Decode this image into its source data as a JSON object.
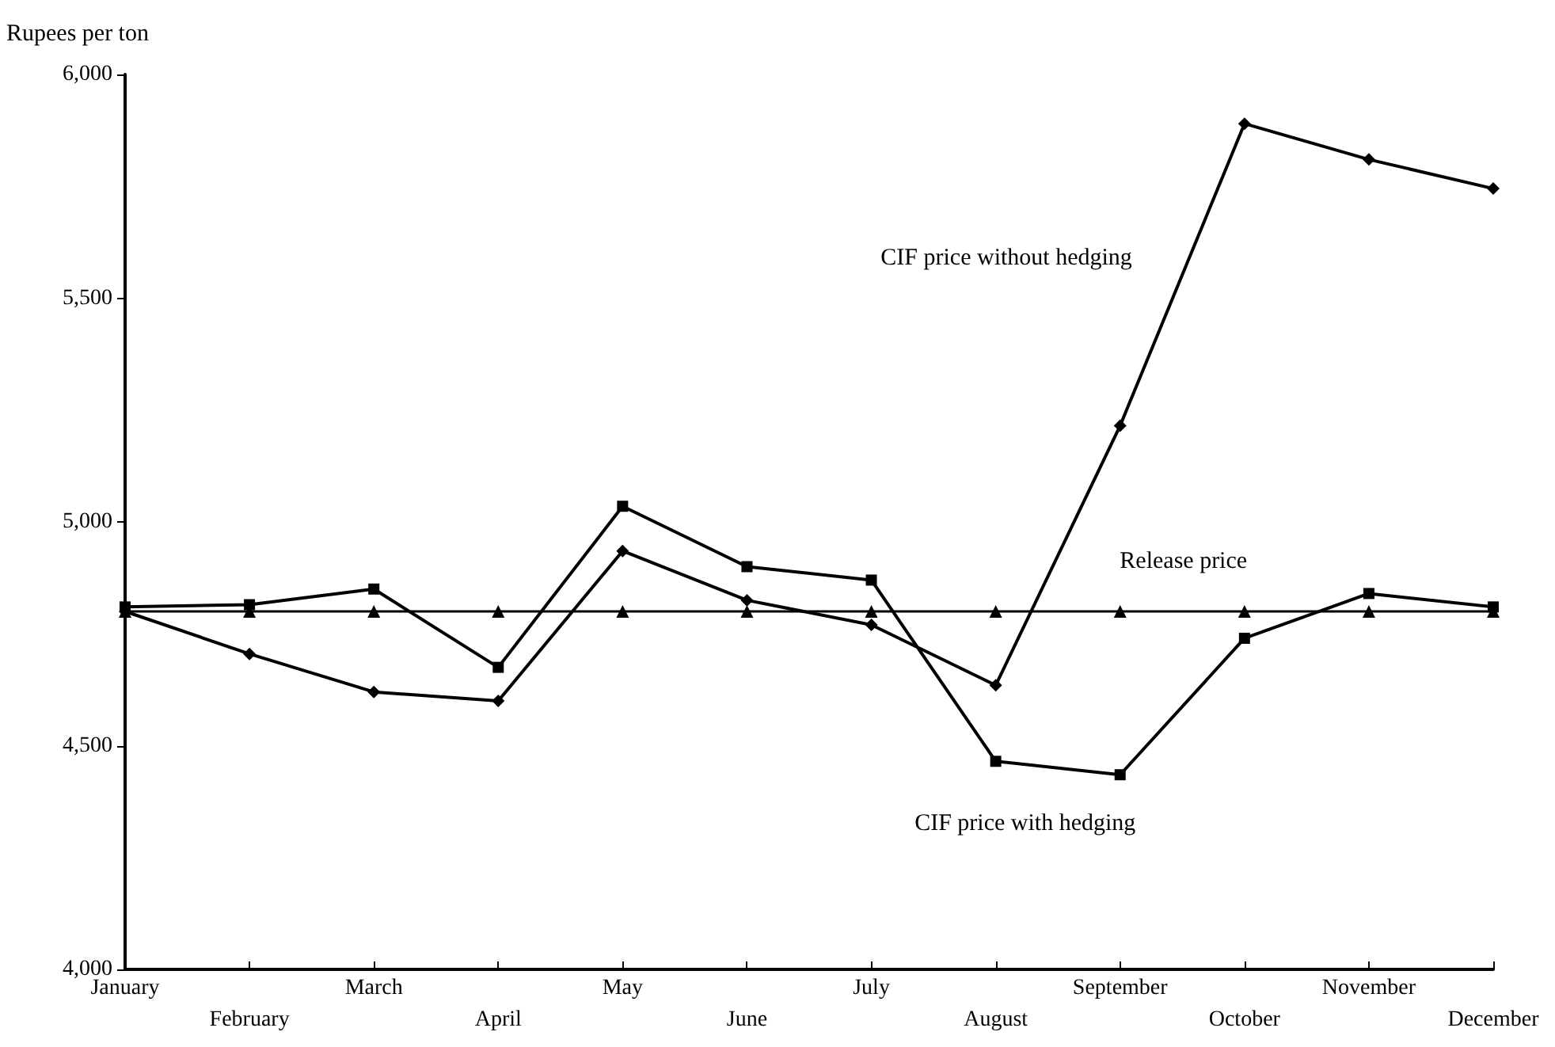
{
  "chart_data": {
    "type": "line",
    "ylabel": "Rupees per ton",
    "categories": [
      "January",
      "February",
      "March",
      "April",
      "May",
      "June",
      "July",
      "August",
      "September",
      "October",
      "November",
      "December"
    ],
    "series": [
      {
        "name": "CIF price without hedging",
        "color": "#000000",
        "marker": "diamond",
        "values": [
          4800,
          4705,
          4620,
          4600,
          4935,
          4825,
          4770,
          4635,
          5215,
          5890,
          5810,
          5745
        ]
      },
      {
        "name": "CIF price with hedging",
        "color": "#000000",
        "marker": "square",
        "values": [
          4810,
          4815,
          4850,
          4675,
          5035,
          4900,
          4870,
          4465,
          4435,
          4740,
          4840,
          4810
        ]
      },
      {
        "name": "Release price",
        "color": "#000000",
        "marker": "triangle",
        "values": [
          4800,
          4800,
          4800,
          4800,
          4800,
          4800,
          4800,
          4800,
          4800,
          4800,
          4800,
          4800
        ]
      }
    ],
    "ylim": [
      4000,
      6000
    ],
    "yticks": [
      {
        "value": 4000,
        "label": "4,000"
      },
      {
        "value": 4500,
        "label": "4,500"
      },
      {
        "value": 5000,
        "label": "5,000"
      },
      {
        "value": 5500,
        "label": "5,500"
      },
      {
        "value": 6000,
        "label": "6,000"
      }
    ],
    "grid": false,
    "legend": false,
    "line_style": "solid"
  }
}
